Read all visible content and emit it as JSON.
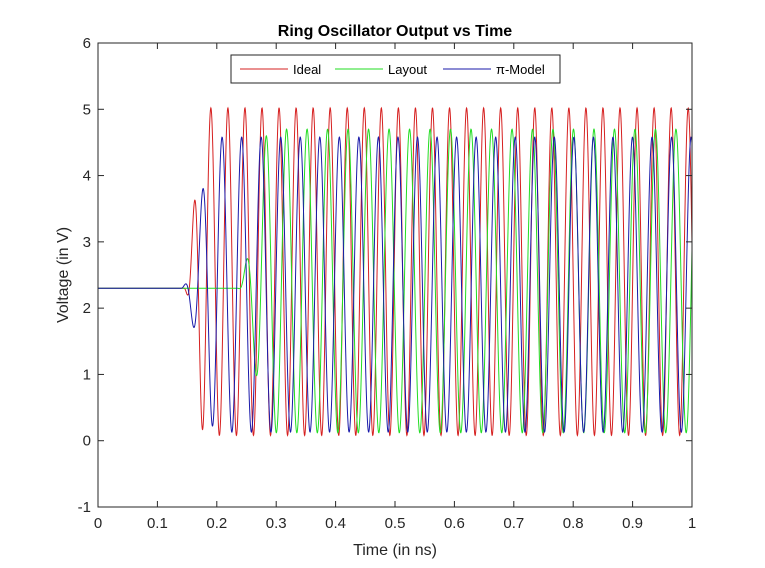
{
  "chart_data": {
    "type": "line",
    "title": "Ring Oscillator Output vs Time",
    "xlabel": "Time (in ns)",
    "ylabel": "Voltage (in V)",
    "xlim": [
      0,
      1
    ],
    "ylim": [
      -1,
      6
    ],
    "xticks": [
      0,
      0.1,
      0.2,
      0.3,
      0.4,
      0.5,
      0.6,
      0.7,
      0.8,
      0.9,
      1
    ],
    "xtick_labels": [
      "0",
      "0.1",
      "0.2",
      "0.3",
      "0.4",
      "0.5",
      "0.6",
      "0.7",
      "0.8",
      "0.9",
      "1"
    ],
    "yticks": [
      -1,
      0,
      1,
      2,
      3,
      4,
      5,
      6
    ],
    "ytick_labels": [
      "-1",
      "0",
      "1",
      "2",
      "3",
      "4",
      "5",
      "6"
    ],
    "grid": false,
    "legend_position": "top-center",
    "series": [
      {
        "name": "Ideal",
        "color": "#d62020",
        "initial_value": 2.3,
        "start_time": 0.145,
        "settled_time": 0.18,
        "period": 0.0287,
        "high": 5.02,
        "low": 0.08,
        "first_peak_time": 0.19
      },
      {
        "name": "Layout",
        "color": "#22dd22",
        "initial_value": 2.3,
        "start_time": 0.235,
        "settled_time": 0.29,
        "period": 0.0345,
        "high": 4.7,
        "low": 0.12,
        "first_peak_time": 0.283
      },
      {
        "name": "π-Model",
        "color": "#1a1aaa",
        "initial_value": 2.3,
        "start_time": 0.14,
        "settled_time": 0.2,
        "period": 0.0329,
        "high": 4.58,
        "low": 0.13,
        "first_peak_time": 0.176
      }
    ]
  }
}
